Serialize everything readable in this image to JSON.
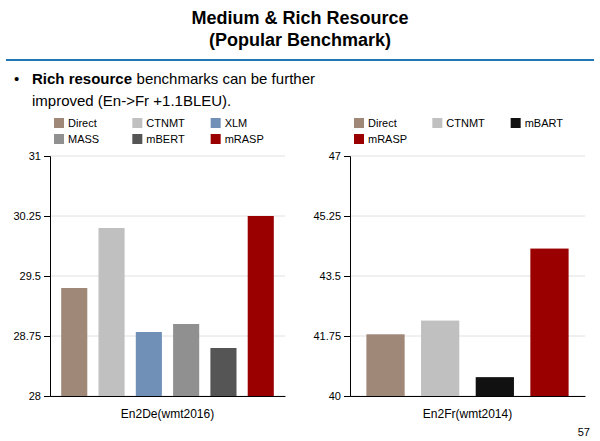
{
  "title": "Medium & Rich Resource",
  "subtitle": "(Popular Benchmark)",
  "annotations": [
    "•",
    "Rich resource",
    "benchmarks can be further",
    "improved (En->Fr +1.1BLEU).",
    "57"
  ],
  "chart_data": [
    {
      "type": "bar",
      "x_label": "En2De(wmt2016)",
      "categories": [
        "Direct",
        "CTNMT",
        "XLM",
        "MASS",
        "mBERT",
        "mRASP"
      ],
      "values": [
        29.35,
        30.1,
        28.8,
        28.9,
        28.6,
        30.25
      ],
      "colors": [
        "#A08878",
        "#C0C0C0",
        "#7090B8",
        "#909090",
        "#555555",
        "#9B0000"
      ],
      "ylim": [
        28,
        31
      ],
      "yticks": [
        28,
        28.75,
        29.5,
        30.25,
        31
      ],
      "grid": true,
      "legend": "top",
      "tick_labels": "y"
    },
    {
      "type": "bar",
      "x_label": "En2Fr(wmt2014)",
      "categories": [
        "Direct",
        "CTNMT",
        "mBART",
        "mRASP"
      ],
      "values": [
        41.8,
        42.2,
        40.55,
        44.3
      ],
      "colors": [
        "#A08878",
        "#C0C0C0",
        "#111111",
        "#9B0000"
      ],
      "ylim": [
        40,
        47
      ],
      "yticks": [
        40,
        41.75,
        43.5,
        45.25,
        47
      ],
      "grid": true,
      "legend": "top",
      "tick_labels": "y"
    }
  ]
}
